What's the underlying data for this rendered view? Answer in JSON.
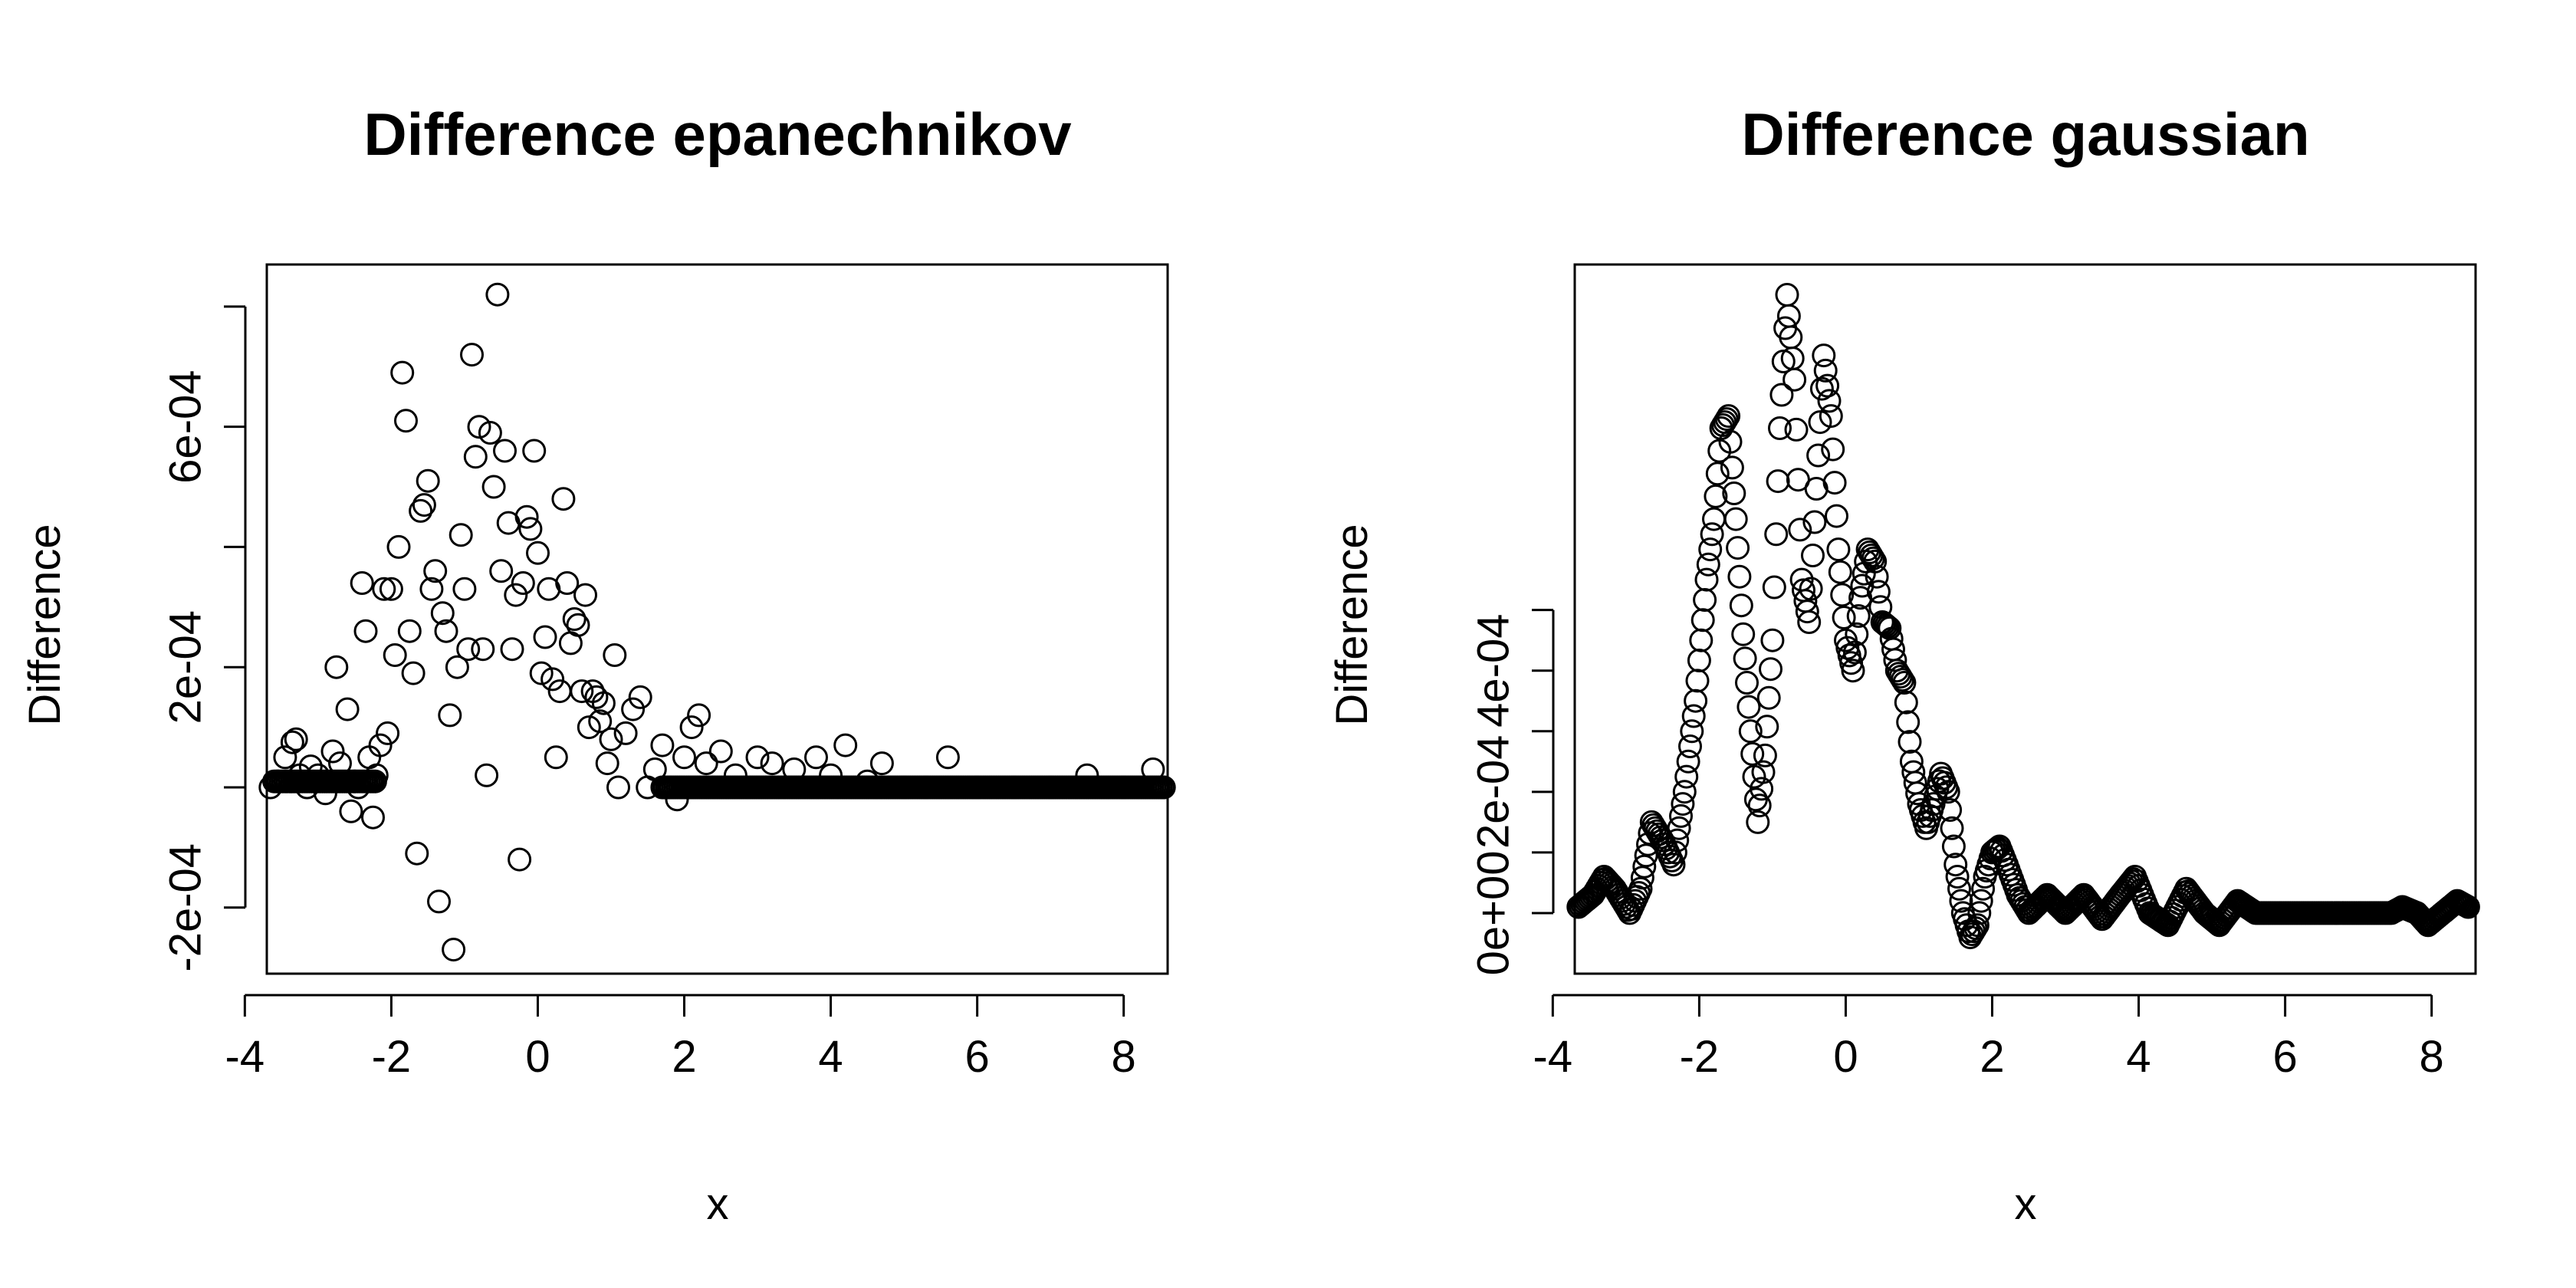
{
  "chart_data": [
    {
      "type": "scatter",
      "title": "Difference epanechnikov",
      "xlabel": "x",
      "ylabel": "Difference",
      "xlim": [
        -3.7,
        8.6
      ],
      "ylim": [
        -0.00031,
        0.00087
      ],
      "xticks": [
        -4,
        -2,
        0,
        2,
        4,
        6,
        8
      ],
      "xtick_labels": [
        "-4",
        "-2",
        "0",
        "2",
        "4",
        "6",
        "8"
      ],
      "yticks": [
        -0.0002,
        0,
        0.0002,
        0.0004,
        0.0006,
        0.0008
      ],
      "ytick_labels": [
        "-2e-04",
        "",
        "2e-04",
        "",
        "6e-04",
        ""
      ],
      "series": [
        {
          "points": [
            [
              -3.65,
              0.0
            ],
            [
              -3.55,
              1e-05
            ],
            [
              -3.45,
              5e-05
            ],
            [
              -3.35,
              7.5e-05
            ],
            [
              -3.3,
              8e-05
            ],
            [
              -3.25,
              2e-05
            ],
            [
              -3.15,
              0.0
            ],
            [
              -3.1,
              3.5e-05
            ],
            [
              -3.0,
              2e-05
            ],
            [
              -2.9,
              -1e-05
            ],
            [
              -2.8,
              6e-05
            ],
            [
              -2.75,
              0.0002
            ],
            [
              -2.7,
              4e-05
            ],
            [
              -2.6,
              0.00013
            ],
            [
              -2.55,
              -4e-05
            ],
            [
              -2.5,
              1e-05
            ],
            [
              -2.45,
              0.0
            ],
            [
              -2.4,
              0.00034
            ],
            [
              -2.35,
              0.00026
            ],
            [
              -2.3,
              5e-05
            ],
            [
              -2.25,
              -5e-05
            ],
            [
              -2.2,
              2e-05
            ],
            [
              -2.15,
              7e-05
            ],
            [
              -2.1,
              0.00033
            ],
            [
              -2.05,
              9e-05
            ],
            [
              -2.0,
              0.00033
            ],
            [
              -1.95,
              0.00022
            ],
            [
              -1.9,
              0.0004
            ],
            [
              -1.85,
              0.00069
            ],
            [
              -1.8,
              0.00061
            ],
            [
              -1.75,
              0.00026
            ],
            [
              -1.7,
              0.00019
            ],
            [
              -1.65,
              -0.00011
            ],
            [
              -1.6,
              0.00046
            ],
            [
              -1.55,
              0.00047
            ],
            [
              -1.5,
              0.00051
            ],
            [
              -1.45,
              0.00033
            ],
            [
              -1.4,
              0.00036
            ],
            [
              -1.35,
              -0.00019
            ],
            [
              -1.3,
              0.00029
            ],
            [
              -1.25,
              0.00026
            ],
            [
              -1.2,
              0.00012
            ],
            [
              -1.15,
              -0.00027
            ],
            [
              -1.1,
              0.0002
            ],
            [
              -1.05,
              0.00042
            ],
            [
              -1.0,
              0.00033
            ],
            [
              -0.95,
              0.00023
            ],
            [
              -0.9,
              0.00072
            ],
            [
              -0.85,
              0.00055
            ],
            [
              -0.8,
              0.0006
            ],
            [
              -0.75,
              0.00023
            ],
            [
              -0.7,
              2e-05
            ],
            [
              -0.65,
              0.00059
            ],
            [
              -0.6,
              0.0005
            ],
            [
              -0.55,
              0.00082
            ],
            [
              -0.5,
              0.00036
            ],
            [
              -0.45,
              0.00056
            ],
            [
              -0.4,
              0.00044
            ],
            [
              -0.35,
              0.00023
            ],
            [
              -0.3,
              0.00032
            ],
            [
              -0.25,
              -0.00012
            ],
            [
              -0.2,
              0.00034
            ],
            [
              -0.15,
              0.00045
            ],
            [
              -0.1,
              0.00043
            ],
            [
              -0.05,
              0.00056
            ],
            [
              0.0,
              0.00039
            ],
            [
              0.05,
              0.00019
            ],
            [
              0.1,
              0.00025
            ],
            [
              0.15,
              0.00033
            ],
            [
              0.2,
              0.00018
            ],
            [
              0.25,
              5e-05
            ],
            [
              0.3,
              0.00016
            ],
            [
              0.35,
              0.00048
            ],
            [
              0.4,
              0.00034
            ],
            [
              0.45,
              0.00024
            ],
            [
              0.5,
              0.00028
            ],
            [
              0.55,
              0.00027
            ],
            [
              0.6,
              0.00016
            ],
            [
              0.65,
              0.00032
            ],
            [
              0.7,
              0.0001
            ],
            [
              0.75,
              0.00016
            ],
            [
              0.8,
              0.00015
            ],
            [
              0.85,
              0.00011
            ],
            [
              0.9,
              0.00014
            ],
            [
              0.95,
              4e-05
            ],
            [
              1.0,
              8e-05
            ],
            [
              1.05,
              0.00022
            ],
            [
              1.1,
              0.0
            ],
            [
              1.2,
              9e-05
            ],
            [
              1.3,
              0.00013
            ],
            [
              1.4,
              0.00015
            ],
            [
              1.5,
              0.0
            ],
            [
              1.6,
              3e-05
            ],
            [
              1.7,
              7e-05
            ],
            [
              1.8,
              0.0
            ],
            [
              1.9,
              -2e-05
            ],
            [
              2.0,
              5e-05
            ],
            [
              2.1,
              0.0001
            ],
            [
              2.2,
              0.00012
            ],
            [
              2.3,
              4e-05
            ],
            [
              2.5,
              6e-05
            ],
            [
              2.7,
              2e-05
            ],
            [
              3.0,
              5e-05
            ],
            [
              3.2,
              4e-05
            ],
            [
              3.5,
              3e-05
            ],
            [
              3.8,
              5e-05
            ],
            [
              4.0,
              2e-05
            ],
            [
              4.2,
              7e-05
            ],
            [
              4.5,
              1e-05
            ],
            [
              4.7,
              4e-05
            ],
            [
              5.0,
              0.0
            ],
            [
              5.3,
              0.0
            ],
            [
              5.6,
              5e-05
            ],
            [
              6.0,
              0.0
            ],
            [
              6.5,
              0.0
            ],
            [
              7.0,
              0.0
            ],
            [
              7.5,
              2e-05
            ],
            [
              8.0,
              0.0
            ],
            [
              8.4,
              3e-05
            ],
            [
              8.55,
              0.0
            ]
          ],
          "baseline": {
            "segments": [
              [
                -3.6,
                -2.2,
                1e-05
              ],
              [
                1.7,
                8.55,
                0.0
              ]
            ]
          }
        }
      ]
    },
    {
      "type": "scatter",
      "title": "Difference gaussian",
      "xlabel": "x",
      "ylabel": "Difference",
      "xlim": [
        -3.7,
        8.6
      ],
      "ylim": [
        -0.0001,
        0.00107
      ],
      "xticks": [
        -4,
        -2,
        0,
        2,
        4,
        6,
        8
      ],
      "xtick_labels": [
        "-4",
        "-2",
        "0",
        "2",
        "4",
        "6",
        "8"
      ],
      "yticks": [
        0,
        0.0001,
        0.0002,
        0.0003,
        0.0004,
        0.0005
      ],
      "ytick_labels": [
        "0e+00",
        "",
        "2e-04",
        "",
        "4e-04",
        ""
      ],
      "series": [
        {
          "curve": [
            [
              -3.65,
              1e-05
            ],
            [
              -3.45,
              3e-05
            ],
            [
              -3.3,
              6e-05
            ],
            [
              -3.15,
              4e-05
            ],
            [
              -2.95,
              0.0
            ],
            [
              -2.8,
              4e-05
            ],
            [
              -2.65,
              0.00015
            ],
            [
              -2.5,
              0.00012
            ],
            [
              -2.35,
              8e-05
            ],
            [
              -2.2,
              0.0002
            ],
            [
              -2.05,
              0.00035
            ],
            [
              -1.9,
              0.00055
            ],
            [
              -1.8,
              0.00065
            ],
            [
              -1.7,
              0.0008
            ],
            [
              -1.6,
              0.00082
            ],
            [
              -1.5,
              0.00065
            ],
            [
              -1.4,
              0.00046
            ],
            [
              -1.3,
              0.0003
            ],
            [
              -1.2,
              0.00015
            ],
            [
              -1.1,
              0.00026
            ],
            [
              -1.0,
              0.00045
            ],
            [
              -0.9,
              0.0008
            ],
            [
              -0.8,
              0.00102
            ],
            [
              -0.7,
              0.00088
            ],
            [
              -0.6,
              0.00055
            ],
            [
              -0.5,
              0.00048
            ],
            [
              -0.4,
              0.0007
            ],
            [
              -0.3,
              0.00092
            ],
            [
              -0.2,
              0.00082
            ],
            [
              -0.1,
              0.0006
            ],
            [
              0.0,
              0.00045
            ],
            [
              0.1,
              0.0004
            ],
            [
              0.2,
              0.00052
            ],
            [
              0.3,
              0.0006
            ],
            [
              0.4,
              0.00058
            ],
            [
              0.5,
              0.00048
            ],
            [
              0.6,
              0.00047
            ],
            [
              0.7,
              0.0004
            ],
            [
              0.8,
              0.00038
            ],
            [
              0.9,
              0.00025
            ],
            [
              1.0,
              0.00018
            ],
            [
              1.1,
              0.00014
            ],
            [
              1.2,
              0.00018
            ],
            [
              1.3,
              0.00023
            ],
            [
              1.4,
              0.0002
            ],
            [
              1.5,
              8e-05
            ],
            [
              1.6,
              0.0
            ],
            [
              1.7,
              -4e-05
            ],
            [
              1.8,
              -2e-05
            ],
            [
              1.9,
              6e-05
            ],
            [
              2.0,
              0.0001
            ],
            [
              2.1,
              0.00011
            ],
            [
              2.2,
              8e-05
            ],
            [
              2.35,
              3e-05
            ],
            [
              2.5,
              0.0
            ],
            [
              2.75,
              3e-05
            ],
            [
              3.0,
              0.0
            ],
            [
              3.25,
              3e-05
            ],
            [
              3.5,
              -1e-05
            ],
            [
              3.75,
              3e-05
            ],
            [
              3.95,
              6e-05
            ],
            [
              4.15,
              0.0
            ],
            [
              4.4,
              -2e-05
            ],
            [
              4.65,
              4e-05
            ],
            [
              4.9,
              0.0
            ],
            [
              5.1,
              -2e-05
            ],
            [
              5.35,
              2e-05
            ],
            [
              5.6,
              0.0
            ],
            [
              6.0,
              0.0
            ],
            [
              6.5,
              0.0
            ],
            [
              7.0,
              0.0
            ],
            [
              7.45,
              0.0
            ],
            [
              7.6,
              1e-05
            ],
            [
              7.8,
              0.0
            ],
            [
              7.95,
              -2e-05
            ],
            [
              8.15,
              0.0
            ],
            [
              8.35,
              2e-05
            ],
            [
              8.5,
              1e-05
            ]
          ]
        }
      ]
    }
  ]
}
